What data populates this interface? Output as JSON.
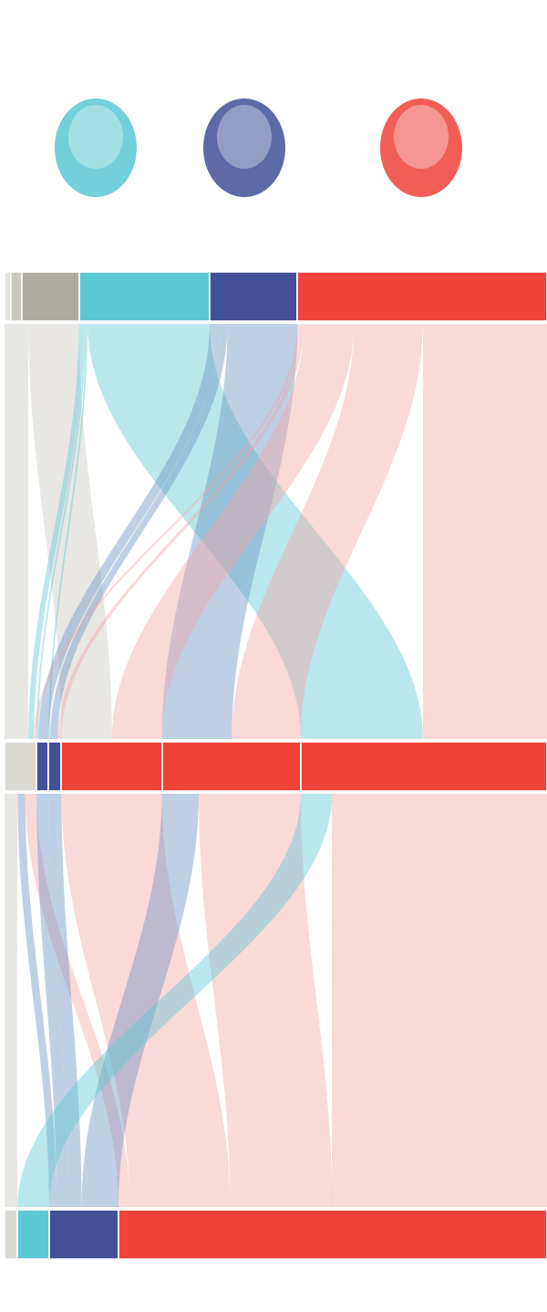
{
  "chart_data": {
    "type": "alluvial",
    "stages": [
      {
        "nodes": [
          {
            "value": 1.2,
            "color": "#e3e2dd"
          },
          {
            "value": 2.0,
            "color": "#c9c7c0"
          },
          {
            "value": 10.5,
            "color": "#aeaba1"
          },
          {
            "value": 24.1,
            "color": "#5bc8d4"
          },
          {
            "value": 16.2,
            "color": "#434f97"
          },
          {
            "value": 46.0,
            "color": "#ef423b"
          }
        ]
      },
      {
        "nodes": [
          {
            "value": 5.9,
            "color": "#dad9d4"
          },
          {
            "value": 2.2,
            "color": "#434f97"
          },
          {
            "value": 2.4,
            "color": "#434f97"
          },
          {
            "value": 18.5,
            "color": "#ef423b"
          },
          {
            "value": 25.6,
            "color": "#ef423b"
          },
          {
            "value": 45.4,
            "color": "#ef423b"
          }
        ]
      },
      {
        "nodes": [
          {
            "value": 2.4,
            "color": "#dad9d4"
          },
          {
            "value": 5.8,
            "color": "#5bc8d4"
          },
          {
            "value": 12.8,
            "color": "#434f97"
          },
          {
            "value": 79.0,
            "color": "#ef423b"
          }
        ]
      }
    ],
    "flows": [
      [
        {
          "from": 0,
          "to": 0,
          "value": 1.2,
          "color": "#c9c7c0"
        },
        {
          "from": 1,
          "to": 0,
          "value": 2.0,
          "color": "#c9c7c0"
        },
        {
          "from": 2,
          "to": 0,
          "value": 1.2,
          "color": "#c9c7c0"
        },
        {
          "from": 2,
          "to": 3,
          "value": 9.3,
          "color": "#c9c7c0"
        },
        {
          "from": 3,
          "to": 0,
          "value": 1.0,
          "color": "#5bc8d4"
        },
        {
          "from": 3,
          "to": 1,
          "value": 0.3,
          "color": "#5bc8d4"
        },
        {
          "from": 3,
          "to": 2,
          "value": 0.3,
          "color": "#5bc8d4"
        },
        {
          "from": 3,
          "to": 5,
          "value": 22.5,
          "color": "#5bc8d4"
        },
        {
          "from": 4,
          "to": 1,
          "value": 1.9,
          "color": "#6a8fc0"
        },
        {
          "from": 4,
          "to": 2,
          "value": 1.4,
          "color": "#6a8fc0"
        },
        {
          "from": 4,
          "to": 4,
          "value": 12.9,
          "color": "#6a8fc0"
        },
        {
          "from": 5,
          "to": 0,
          "value": 0.5,
          "color": "#f4a6a6"
        },
        {
          "from": 5,
          "to": 2,
          "value": 0.7,
          "color": "#f4a6a6"
        },
        {
          "from": 5,
          "to": 3,
          "value": 9.2,
          "color": "#f4a6a6"
        },
        {
          "from": 5,
          "to": 4,
          "value": 12.7,
          "color": "#f4a6a6"
        },
        {
          "from": 5,
          "to": 5,
          "value": 22.9,
          "color": "#f4a6a6"
        }
      ],
      [
        {
          "from": 0,
          "to": 0,
          "value": 2.4,
          "color": "#c9c7c0"
        },
        {
          "from": 0,
          "to": 2,
          "value": 1.4,
          "color": "#6a8fc0"
        },
        {
          "from": 0,
          "to": 3,
          "value": 2.1,
          "color": "#f4a6a6"
        },
        {
          "from": 1,
          "to": 2,
          "value": 2.2,
          "color": "#6a8fc0"
        },
        {
          "from": 2,
          "to": 2,
          "value": 2.4,
          "color": "#6a8fc0"
        },
        {
          "from": 3,
          "to": 3,
          "value": 18.5,
          "color": "#f4a6a6"
        },
        {
          "from": 4,
          "to": 2,
          "value": 6.8,
          "color": "#6a8fc0"
        },
        {
          "from": 4,
          "to": 3,
          "value": 18.8,
          "color": "#f4a6a6"
        },
        {
          "from": 5,
          "to": 1,
          "value": 5.8,
          "color": "#5bc8d4"
        },
        {
          "from": 5,
          "to": 3,
          "value": 39.6,
          "color": "#f4a6a6"
        }
      ]
    ]
  }
}
